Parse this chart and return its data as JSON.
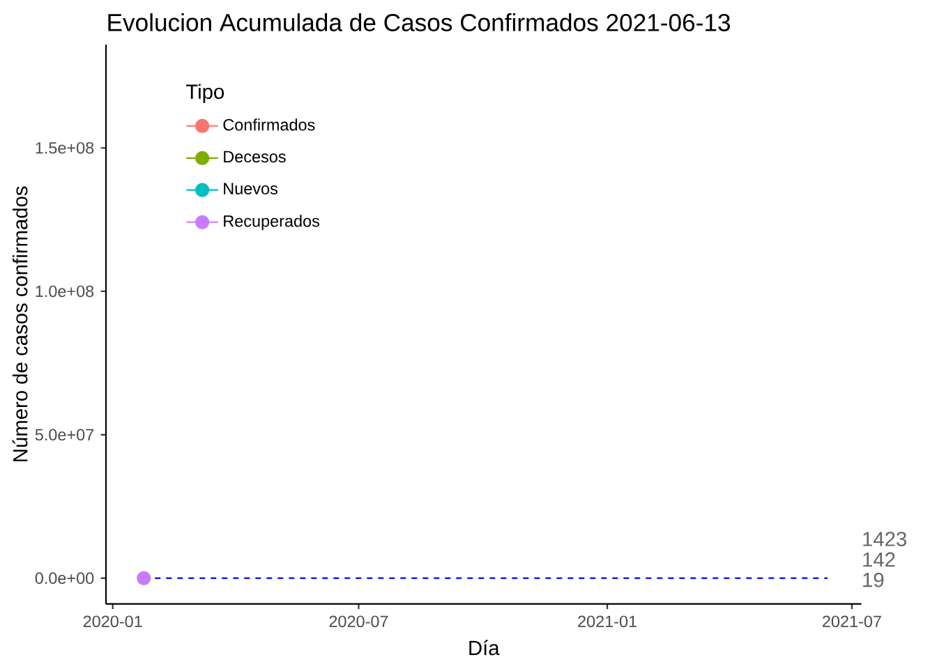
{
  "chart_data": {
    "type": "line",
    "title": "Evolucion Acumulada de Casos Confirmados  2021-06-13",
    "xlabel": "Día",
    "ylabel": "Número de casos confirmados",
    "legend_title": "Tipo",
    "legend": "top left",
    "marker": "circle",
    "x": [
      "2020-01-24"
    ],
    "series": [
      {
        "type": "line",
        "color": "#0000ff",
        "line_style": "dashed",
        "marker": "none",
        "x": [
          "2020-01-24",
          "2021-06-13"
        ],
        "values": [
          0,
          0
        ]
      },
      {
        "name": "Confirmados",
        "color": "#f8766d",
        "values": [
          null
        ]
      },
      {
        "name": "Decesos",
        "color": "#7cae00",
        "values": [
          null
        ]
      },
      {
        "name": "Nuevos",
        "color": "#00bfc4",
        "values": [
          null
        ]
      },
      {
        "name": "Recuperados",
        "color": "#c77cff",
        "values": [
          0
        ]
      }
    ],
    "xlim": [
      "2019-12-27",
      "2021-07-08"
    ],
    "xticks": [
      "2020-01",
      "2020-07",
      "2021-01",
      "2021-07"
    ],
    "ylim": [
      -9000000,
      186000000
    ],
    "yticks": [
      {
        "value": 0,
        "label": "0.0e+00"
      },
      {
        "value": 50000000,
        "label": "5.0e+07"
      },
      {
        "value": 100000000,
        "label": "1.0e+08"
      },
      {
        "value": 150000000,
        "label": "1.5e+08"
      }
    ],
    "annotations": [
      "1423",
      "142",
      "19"
    ]
  }
}
